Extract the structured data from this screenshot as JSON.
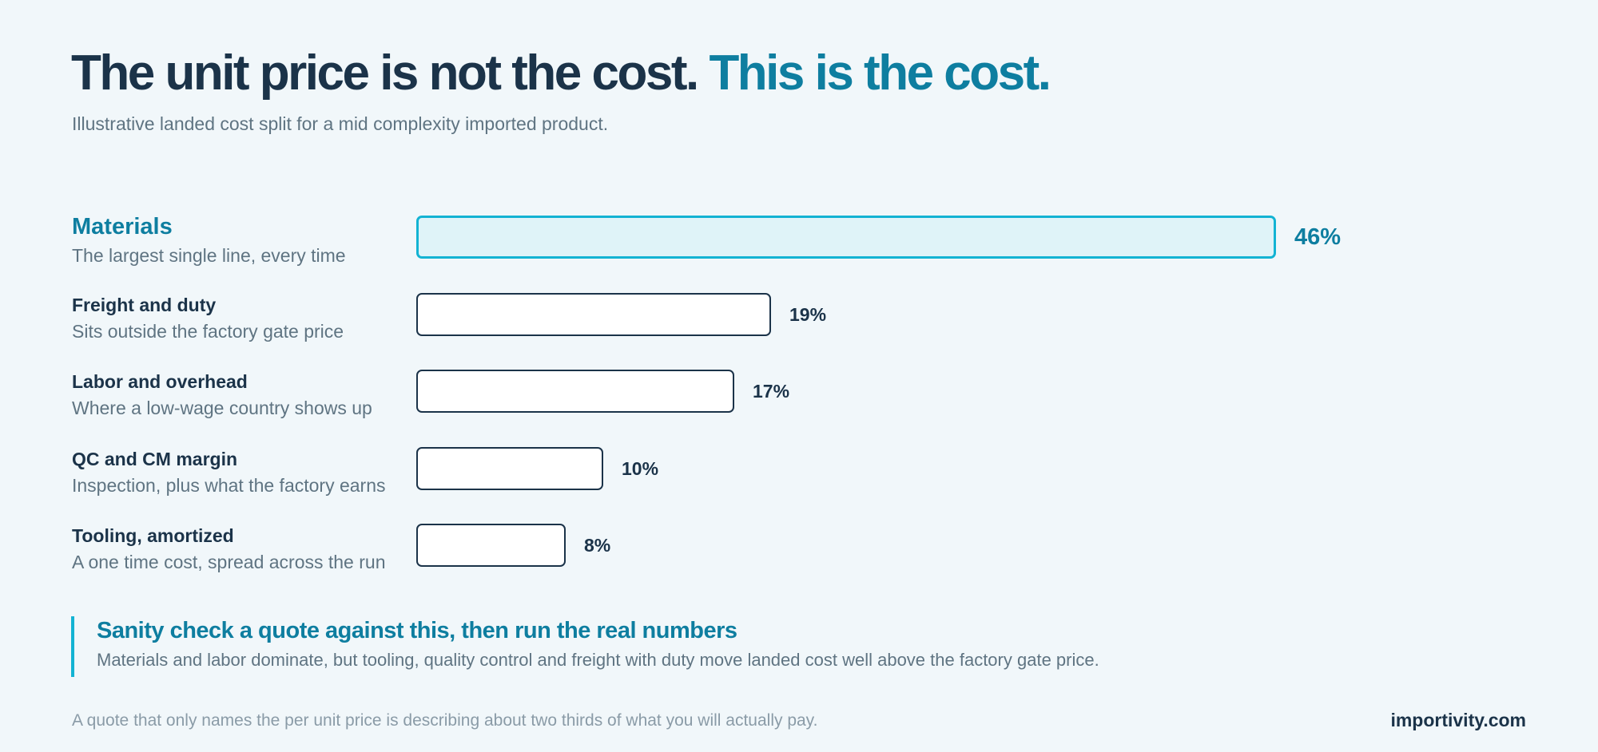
{
  "header": {
    "title_main": "The unit price is not the cost.",
    "title_accent": "This is the cost.",
    "subtitle": "Illustrative landed cost split for a mid complexity imported product."
  },
  "chart_data": {
    "type": "bar",
    "orientation": "horizontal",
    "unit": "%",
    "categories": [
      "Materials",
      "Freight and duty",
      "Labor and overhead",
      "QC and CM margin",
      "Tooling, amortized"
    ],
    "descriptions": [
      "The largest single line, every time",
      "Sits outside the factory gate price",
      "Where a low-wage country shows up",
      "Inspection, plus what the factory earns",
      "A one time cost, spread across the run"
    ],
    "values": [
      46,
      19,
      17,
      10,
      8
    ],
    "value_labels": [
      "46%",
      "19%",
      "17%",
      "10%",
      "8%"
    ],
    "highlight_index": 0,
    "xlim": [
      0,
      46
    ],
    "grid": false,
    "legend": "none"
  },
  "callout": {
    "title": "Sanity check a quote against this, then run the real numbers",
    "text": "Materials and labor dominate, but tooling, quality control and freight with duty move landed cost well above the factory gate price."
  },
  "footer": {
    "note": "A quote that only names the per unit price is describing about two thirds of what you will actually pay.",
    "brand": "importivity.com"
  },
  "colors": {
    "background": "#f1f7fa",
    "ink": "#1b3349",
    "accent": "#0e7ea0",
    "highlight_border": "#13b3d3",
    "highlight_fill": "#dff3f8",
    "muted": "#5f7482"
  }
}
